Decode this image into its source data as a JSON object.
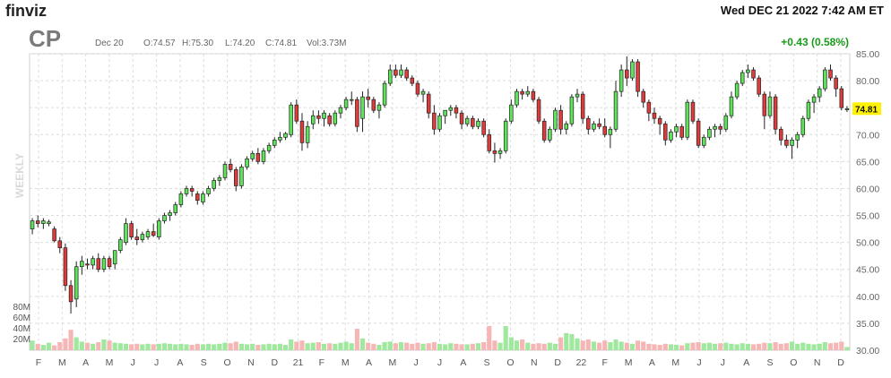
{
  "header": {
    "logo": "finviz",
    "datetime": "Wed DEC 21 2022 7:42 AM ET",
    "ticker": "CP",
    "ohlc_date": "Dec 20",
    "open": "O:74.57",
    "high": "H:75.30",
    "low": "L:74.20",
    "close": "C:74.81",
    "volume": "Vol:3.73M",
    "change": "+0.43 (0.58%)",
    "timeframe": "WEEKLY",
    "last_price_tag": "74.81"
  },
  "colors": {
    "up_fill": "#5ee35b",
    "down_fill": "#e03b3b",
    "up_volume": "#9fe89d",
    "down_volume": "#f6b6b6",
    "change_text": "#1a9a1a",
    "price_tag_bg": "#fff200"
  },
  "chart_data": {
    "type": "candlestick",
    "price_axis": {
      "ticks": [
        "85.00",
        "80.00",
        "75.00",
        "70.00",
        "65.00",
        "60.00",
        "55.00",
        "50.00",
        "45.00",
        "40.00",
        "35.00",
        "30.00"
      ],
      "range": [
        30,
        85
      ]
    },
    "volume_axis": {
      "ticks": [
        "80M",
        "60M",
        "40M",
        "20M"
      ],
      "range": [
        0,
        100
      ]
    },
    "x_ticks": [
      "F",
      "M",
      "A",
      "M",
      "J",
      "J",
      "A",
      "S",
      "O",
      "N",
      "D",
      "21",
      "F",
      "M",
      "A",
      "M",
      "J",
      "J",
      "A",
      "S",
      "O",
      "N",
      "D",
      "22",
      "F",
      "M",
      "A",
      "M",
      "J",
      "J",
      "A",
      "S",
      "O",
      "N",
      "D"
    ],
    "grid": true,
    "last_price": 74.81,
    "candles": [
      [
        52.5,
        54.5,
        51.5,
        54.0,
        18
      ],
      [
        54.0,
        55.0,
        52.8,
        53.5,
        12
      ],
      [
        53.5,
        54.5,
        52.5,
        54.0,
        10
      ],
      [
        53.5,
        54.2,
        53.0,
        53.8,
        14
      ],
      [
        52.5,
        53.0,
        50.0,
        50.3,
        9
      ],
      [
        50.3,
        51.0,
        48.0,
        49.0,
        15
      ],
      [
        49.0,
        49.8,
        41.0,
        42.0,
        22
      ],
      [
        42.0,
        43.0,
        36.8,
        39.0,
        38
      ],
      [
        39.5,
        46.5,
        38.0,
        45.5,
        24
      ],
      [
        45.5,
        47.5,
        44.0,
        46.5,
        16
      ],
      [
        46.0,
        47.0,
        45.0,
        45.8,
        14
      ],
      [
        45.8,
        47.5,
        45.0,
        47.0,
        12
      ],
      [
        47.0,
        48.0,
        44.5,
        45.0,
        15
      ],
      [
        45.0,
        47.5,
        44.5,
        47.0,
        20
      ],
      [
        47.0,
        47.5,
        45.0,
        45.5,
        18
      ],
      [
        46.0,
        48.5,
        45.0,
        48.5,
        14
      ],
      [
        48.5,
        51.0,
        48.0,
        50.5,
        13
      ],
      [
        50.0,
        54.5,
        49.5,
        53.5,
        12
      ],
      [
        53.5,
        54.0,
        50.5,
        51.0,
        11
      ],
      [
        51.0,
        52.5,
        49.5,
        50.5,
        12
      ],
      [
        50.5,
        52.0,
        50.0,
        51.5,
        11
      ],
      [
        51.0,
        52.5,
        50.5,
        52.0,
        12
      ],
      [
        52.0,
        53.5,
        51.0,
        51.3,
        11
      ],
      [
        51.0,
        54.5,
        50.5,
        54.0,
        12
      ],
      [
        54.0,
        55.5,
        53.5,
        55.0,
        13
      ],
      [
        55.0,
        56.0,
        54.0,
        55.5,
        12
      ],
      [
        55.5,
        57.5,
        55.0,
        57.0,
        11
      ],
      [
        57.0,
        59.5,
        56.5,
        59.0,
        12
      ],
      [
        59.0,
        60.5,
        58.5,
        60.0,
        11
      ],
      [
        60.0,
        60.5,
        58.5,
        59.5,
        10
      ],
      [
        59.0,
        59.5,
        57.0,
        57.8,
        12
      ],
      [
        57.5,
        59.5,
        57.0,
        59.0,
        11
      ],
      [
        59.0,
        60.5,
        58.5,
        60.0,
        12
      ],
      [
        60.0,
        62.0,
        59.5,
        61.5,
        11
      ],
      [
        61.5,
        62.5,
        60.5,
        62.0,
        12
      ],
      [
        62.0,
        65.0,
        61.5,
        64.5,
        14
      ],
      [
        64.5,
        65.5,
        63.0,
        63.5,
        13
      ],
      [
        63.5,
        64.0,
        59.5,
        60.5,
        16
      ],
      [
        60.5,
        64.5,
        60.0,
        64.0,
        12
      ],
      [
        64.0,
        66.0,
        63.5,
        65.5,
        11
      ],
      [
        65.5,
        67.0,
        65.0,
        66.5,
        12
      ],
      [
        66.5,
        67.5,
        64.5,
        65.0,
        10
      ],
      [
        65.0,
        67.5,
        64.5,
        67.0,
        11
      ],
      [
        67.0,
        68.5,
        66.5,
        68.0,
        12
      ],
      [
        68.0,
        69.5,
        67.5,
        69.0,
        11
      ],
      [
        69.0,
        70.5,
        68.5,
        69.5,
        12
      ],
      [
        69.5,
        70.5,
        69.0,
        70.2,
        10
      ],
      [
        70.0,
        76.0,
        69.5,
        75.5,
        20
      ],
      [
        75.5,
        76.5,
        72.0,
        72.5,
        16
      ],
      [
        72.5,
        74.0,
        67.0,
        68.5,
        18
      ],
      [
        68.5,
        72.5,
        67.5,
        71.5,
        13
      ],
      [
        72.0,
        74.5,
        71.0,
        73.5,
        14
      ],
      [
        73.5,
        74.5,
        72.0,
        73.0,
        15
      ],
      [
        73.0,
        74.5,
        71.5,
        74.0,
        12
      ],
      [
        73.5,
        74.0,
        71.5,
        72.0,
        13
      ],
      [
        72.0,
        74.5,
        71.5,
        74.0,
        12
      ],
      [
        74.0,
        75.5,
        73.0,
        75.0,
        14
      ],
      [
        75.0,
        77.0,
        74.5,
        76.5,
        16
      ],
      [
        76.5,
        78.0,
        75.5,
        76.5,
        13
      ],
      [
        76.5,
        77.0,
        70.5,
        71.5,
        40
      ],
      [
        73.0,
        78.0,
        70.5,
        77.0,
        22
      ],
      [
        77.0,
        78.5,
        75.0,
        76.5,
        14
      ],
      [
        76.5,
        77.0,
        74.0,
        74.5,
        12
      ],
      [
        74.5,
        76.0,
        73.0,
        75.5,
        10
      ],
      [
        75.5,
        80.0,
        75.0,
        79.5,
        15
      ],
      [
        79.5,
        83.0,
        79.0,
        82.0,
        16
      ],
      [
        82.0,
        83.0,
        80.5,
        81.0,
        13
      ],
      [
        81.0,
        83.0,
        80.5,
        82.0,
        15
      ],
      [
        82.0,
        82.5,
        80.0,
        80.5,
        14
      ],
      [
        80.5,
        81.0,
        79.0,
        79.5,
        12
      ],
      [
        79.5,
        80.0,
        77.0,
        77.5,
        14
      ],
      [
        77.5,
        78.5,
        76.0,
        78.0,
        12
      ],
      [
        77.5,
        78.0,
        73.0,
        74.0,
        13
      ],
      [
        74.0,
        75.5,
        70.0,
        71.0,
        15
      ],
      [
        71.0,
        74.0,
        70.5,
        73.5,
        12
      ],
      [
        73.5,
        74.5,
        72.0,
        74.5,
        11
      ],
      [
        74.5,
        75.5,
        73.5,
        75.0,
        13
      ],
      [
        75.0,
        75.5,
        73.0,
        74.0,
        12
      ],
      [
        74.0,
        74.5,
        71.0,
        72.0,
        11
      ],
      [
        72.0,
        73.5,
        71.5,
        73.0,
        11
      ],
      [
        73.0,
        73.5,
        71.0,
        71.5,
        12
      ],
      [
        71.5,
        73.0,
        71.0,
        72.5,
        13
      ],
      [
        72.5,
        73.0,
        69.5,
        70.0,
        15
      ],
      [
        70.0,
        71.0,
        66.5,
        67.0,
        45
      ],
      [
        67.0,
        68.5,
        64.8,
        66.5,
        18
      ],
      [
        66.5,
        67.5,
        65.5,
        67.0,
        14
      ],
      [
        67.0,
        73.0,
        66.5,
        72.5,
        45
      ],
      [
        72.5,
        76.5,
        72.0,
        75.5,
        24
      ],
      [
        75.5,
        78.5,
        75.0,
        78.0,
        18
      ],
      [
        78.0,
        78.5,
        76.5,
        77.5,
        20
      ],
      [
        77.5,
        79.0,
        77.0,
        78.0,
        14
      ],
      [
        78.0,
        78.5,
        76.0,
        76.5,
        12
      ],
      [
        76.5,
        77.0,
        72.0,
        72.5,
        13
      ],
      [
        72.5,
        73.0,
        68.5,
        69.0,
        12
      ],
      [
        69.0,
        71.5,
        68.5,
        71.0,
        14
      ],
      [
        71.0,
        75.0,
        70.5,
        74.5,
        12
      ],
      [
        74.5,
        75.5,
        70.0,
        71.0,
        24
      ],
      [
        71.0,
        72.5,
        70.0,
        72.0,
        32
      ],
      [
        72.0,
        77.5,
        71.5,
        77.0,
        30
      ],
      [
        77.0,
        78.5,
        76.0,
        77.5,
        22
      ],
      [
        77.5,
        78.0,
        72.0,
        73.0,
        18
      ],
      [
        73.0,
        73.5,
        70.0,
        71.0,
        20
      ],
      [
        71.0,
        72.5,
        70.5,
        72.0,
        16
      ],
      [
        72.0,
        73.0,
        71.0,
        71.5,
        14
      ],
      [
        71.5,
        73.0,
        69.5,
        70.0,
        18
      ],
      [
        70.0,
        71.5,
        67.5,
        71.0,
        15
      ],
      [
        71.0,
        80.0,
        70.5,
        78.0,
        20
      ],
      [
        78.0,
        83.0,
        77.0,
        82.0,
        16
      ],
      [
        82.0,
        84.5,
        79.0,
        80.5,
        14
      ],
      [
        80.5,
        84.0,
        80.0,
        83.5,
        12
      ],
      [
        83.5,
        84.0,
        77.0,
        78.0,
        18
      ],
      [
        78.0,
        78.5,
        75.0,
        76.0,
        16
      ],
      [
        76.0,
        76.5,
        72.5,
        74.0,
        12
      ],
      [
        74.0,
        75.0,
        72.0,
        73.0,
        11
      ],
      [
        73.0,
        73.5,
        70.0,
        72.0,
        10
      ],
      [
        72.0,
        72.5,
        68.0,
        69.0,
        12
      ],
      [
        69.0,
        71.0,
        68.5,
        70.5,
        11
      ],
      [
        70.5,
        72.0,
        69.5,
        71.5,
        10
      ],
      [
        71.5,
        72.0,
        69.0,
        69.5,
        9
      ],
      [
        69.5,
        76.5,
        69.0,
        76.0,
        13
      ],
      [
        76.0,
        76.5,
        72.0,
        72.5,
        14
      ],
      [
        72.5,
        73.0,
        67.5,
        68.0,
        15
      ],
      [
        68.0,
        70.0,
        67.5,
        69.5,
        13
      ],
      [
        69.5,
        71.5,
        69.0,
        71.0,
        14
      ],
      [
        71.0,
        72.0,
        69.5,
        71.5,
        12
      ],
      [
        71.5,
        72.0,
        70.0,
        71.0,
        13
      ],
      [
        71.0,
        74.0,
        70.5,
        73.5,
        14
      ],
      [
        73.5,
        78.0,
        73.0,
        77.0,
        12
      ],
      [
        77.0,
        80.0,
        76.5,
        79.5,
        11
      ],
      [
        79.5,
        82.0,
        79.0,
        81.5,
        13
      ],
      [
        81.5,
        83.0,
        80.5,
        82.0,
        12
      ],
      [
        82.0,
        82.5,
        80.0,
        80.5,
        11
      ],
      [
        80.5,
        81.0,
        77.0,
        77.5,
        12
      ],
      [
        77.5,
        78.0,
        71.0,
        73.5,
        14
      ],
      [
        73.5,
        78.0,
        73.0,
        77.0,
        13
      ],
      [
        77.0,
        77.5,
        70.0,
        71.0,
        15
      ],
      [
        71.0,
        71.5,
        68.0,
        69.0,
        12
      ],
      [
        69.0,
        70.0,
        67.5,
        68.0,
        13
      ],
      [
        68.0,
        69.5,
        65.5,
        69.0,
        16
      ],
      [
        69.0,
        70.5,
        67.5,
        70.0,
        12
      ],
      [
        70.0,
        73.5,
        69.5,
        73.0,
        14
      ],
      [
        73.0,
        76.5,
        72.5,
        76.0,
        12
      ],
      [
        76.0,
        77.5,
        74.0,
        77.0,
        11
      ],
      [
        77.0,
        79.0,
        76.0,
        78.5,
        12
      ],
      [
        78.5,
        82.5,
        78.0,
        82.0,
        15
      ],
      [
        82.0,
        83.0,
        80.0,
        80.5,
        13
      ],
      [
        80.5,
        81.0,
        77.0,
        78.5,
        14
      ],
      [
        78.5,
        79.0,
        74.5,
        75.0,
        16
      ],
      [
        74.6,
        75.3,
        74.2,
        74.81,
        6
      ]
    ]
  }
}
